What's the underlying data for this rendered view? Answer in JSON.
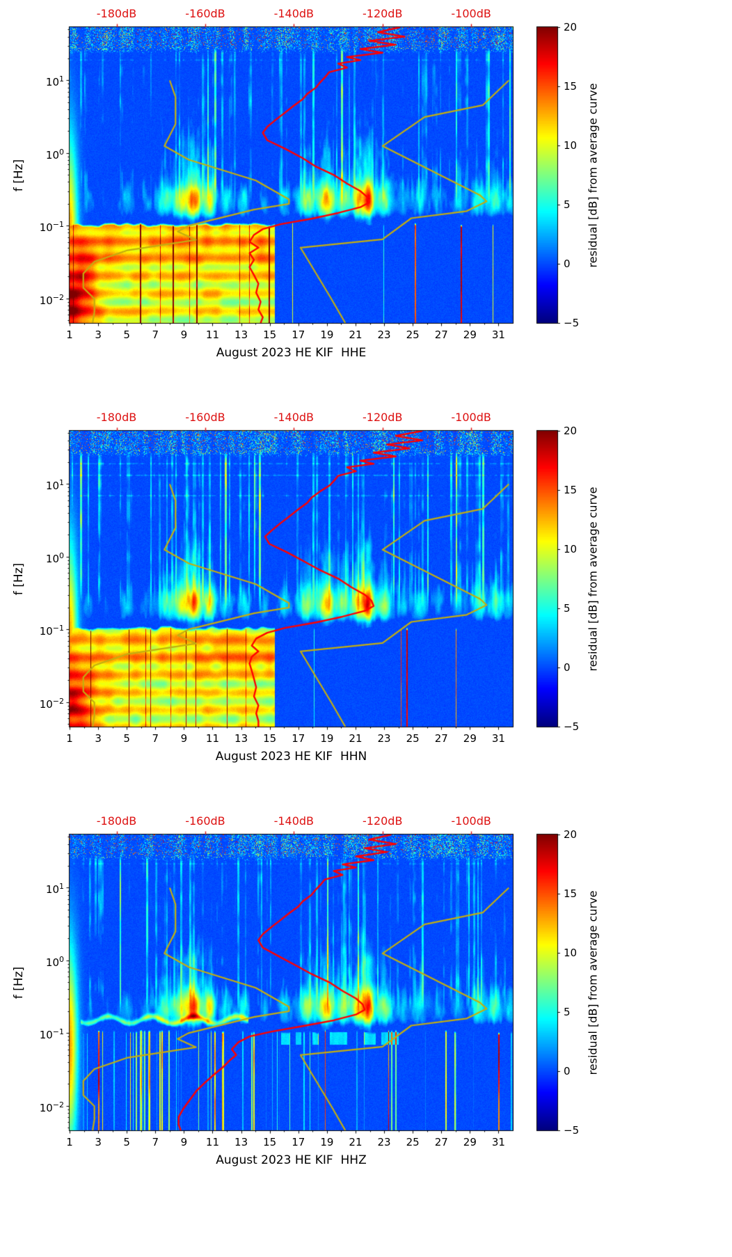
{
  "meta": {
    "month": "August 2023",
    "station": "HE KIF",
    "channels": [
      "HHE",
      "HHN",
      "HHZ"
    ]
  },
  "colors": {
    "background": "#ffffff",
    "axis": "#000000",
    "top_axis_red": "#dd1111",
    "mean_curve_red": "#ff0000",
    "noise_model_olive": "#c3ae10"
  },
  "chart_data": {
    "type": "heatmap",
    "shared": {
      "x_axis": {
        "ticks": [
          1,
          3,
          5,
          7,
          9,
          11,
          13,
          15,
          17,
          19,
          21,
          23,
          25,
          27,
          29,
          31
        ],
        "minor_ticks": [
          2,
          4,
          6,
          8,
          10,
          12,
          14,
          16,
          18,
          20,
          22,
          24,
          26,
          28,
          30
        ],
        "range": [
          1,
          32
        ]
      },
      "y_axis": {
        "label": "f [Hz]",
        "scale": "log",
        "range": [
          0.0046,
          54
        ],
        "ticks": [
          {
            "f": 10,
            "base": "10",
            "exp": "1"
          },
          {
            "f": 1,
            "base": "10",
            "exp": "0"
          },
          {
            "f": 0.1,
            "base": "10",
            "exp": "−1"
          },
          {
            "f": 0.01,
            "base": "10",
            "exp": "−2"
          }
        ]
      },
      "top_axis": {
        "color": "#dd1111",
        "range": [
          -190.6,
          -90.6
        ],
        "ticks": [
          {
            "db": -180,
            "label": "-180dB"
          },
          {
            "db": -160,
            "label": "-160dB"
          },
          {
            "db": -140,
            "label": "-140dB"
          },
          {
            "db": -120,
            "label": "-120dB"
          },
          {
            "db": -100,
            "label": "-100dB"
          }
        ]
      },
      "colorbar": {
        "label": "residual [dB] from average curve",
        "range": [
          -5,
          20
        ],
        "colormap": "jet",
        "ticks": [
          {
            "v": 20,
            "label": "20"
          },
          {
            "v": 15,
            "label": "15"
          },
          {
            "v": 10,
            "label": "10"
          },
          {
            "v": 5,
            "label": "5"
          },
          {
            "v": 0,
            "label": "0"
          },
          {
            "v": -5,
            "label": "−5"
          }
        ]
      },
      "noise_models": {
        "color": "#c3ae10",
        "nlnm": [
          [
            10,
            -168
          ],
          [
            5.9,
            -166.7
          ],
          [
            2.5,
            -166.7
          ],
          [
            1.25,
            -169.2
          ],
          [
            0.81,
            -163.7
          ],
          [
            0.42,
            -148.6
          ],
          [
            0.23,
            -141.1
          ],
          [
            0.2,
            -141.1
          ],
          [
            0.167,
            -149
          ],
          [
            0.1,
            -163.8
          ],
          [
            0.083,
            -166.2
          ],
          [
            0.064,
            -162.1
          ],
          [
            0.046,
            -177.5
          ],
          [
            0.032,
            -185
          ],
          [
            0.022,
            -187.5
          ],
          [
            0.014,
            -187.5
          ],
          [
            0.0099,
            -185
          ],
          [
            0.0065,
            -185
          ],
          [
            0.0046,
            -185.4
          ]
        ],
        "nhnm": [
          [
            10,
            -91.5
          ],
          [
            4.55,
            -97.4
          ],
          [
            3.13,
            -110.5
          ],
          [
            1.25,
            -120
          ],
          [
            0.263,
            -98
          ],
          [
            0.217,
            -96.5
          ],
          [
            0.159,
            -101
          ],
          [
            0.127,
            -113.5
          ],
          [
            0.065,
            -120
          ],
          [
            0.05,
            -138.5
          ],
          [
            0.01,
            -131.6
          ],
          [
            0.0046,
            -128.4
          ]
        ]
      },
      "mean_curve_color": "#ff0000",
      "ms_events": [
        [
          2.3,
          3.5,
          0.5
        ],
        [
          3.6,
          2.5,
          0.4
        ],
        [
          5,
          4.5,
          0.6
        ],
        [
          6.4,
          3,
          0.4
        ],
        [
          7.7,
          7,
          0.7
        ],
        [
          8.8,
          9,
          0.5
        ],
        [
          9.7,
          15,
          0.55
        ],
        [
          10.8,
          11,
          0.45
        ],
        [
          12,
          5,
          0.5
        ],
        [
          13.2,
          6,
          0.5
        ],
        [
          14.6,
          4,
          0.4
        ],
        [
          16,
          5,
          0.5
        ],
        [
          17.6,
          9,
          0.7
        ],
        [
          19,
          13,
          0.6
        ],
        [
          20.2,
          9,
          0.5
        ],
        [
          21.2,
          12,
          0.45
        ],
        [
          21.9,
          16,
          0.4
        ],
        [
          23,
          9,
          0.6
        ],
        [
          24.3,
          4,
          0.5
        ],
        [
          25.5,
          5,
          0.6
        ],
        [
          26.8,
          3.5,
          0.5
        ],
        [
          28.2,
          4,
          0.5
        ],
        [
          29.6,
          6.5,
          0.6
        ],
        [
          30.8,
          7,
          0.5
        ],
        [
          31.8,
          5,
          0.4
        ]
      ]
    },
    "panels": [
      {
        "channel": "HHE",
        "xlabel": "August 2023 HE KIF  HHE",
        "seed": 11,
        "mean_curve": [
          [
            54,
            -116
          ],
          [
            46,
            -121
          ],
          [
            40,
            -115
          ],
          [
            35,
            -123
          ],
          [
            31,
            -117
          ],
          [
            27,
            -125
          ],
          [
            24,
            -120
          ],
          [
            21,
            -128
          ],
          [
            19,
            -125
          ],
          [
            17,
            -130
          ],
          [
            15,
            -128
          ],
          [
            13,
            -132
          ],
          [
            11,
            -133
          ],
          [
            9.5,
            -134
          ],
          [
            8,
            -135
          ],
          [
            6.5,
            -137
          ],
          [
            5.5,
            -138
          ],
          [
            4.5,
            -140
          ],
          [
            3.6,
            -142
          ],
          [
            2.9,
            -144
          ],
          [
            2.3,
            -146
          ],
          [
            1.9,
            -147
          ],
          [
            1.5,
            -146
          ],
          [
            1.15,
            -142
          ],
          [
            0.85,
            -138
          ],
          [
            0.65,
            -135
          ],
          [
            0.5,
            -131
          ],
          [
            0.38,
            -128
          ],
          [
            0.3,
            -125
          ],
          [
            0.25,
            -123.5
          ],
          [
            0.21,
            -123
          ],
          [
            0.18,
            -125
          ],
          [
            0.15,
            -130
          ],
          [
            0.125,
            -136
          ],
          [
            0.105,
            -143
          ],
          [
            0.09,
            -147
          ],
          [
            0.075,
            -149
          ],
          [
            0.06,
            -150
          ],
          [
            0.05,
            -148
          ],
          [
            0.042,
            -150
          ],
          [
            0.034,
            -149
          ],
          [
            0.027,
            -150
          ],
          [
            0.021,
            -149
          ],
          [
            0.016,
            -148
          ],
          [
            0.012,
            -148.5
          ],
          [
            0.009,
            -147.5
          ],
          [
            0.007,
            -148
          ],
          [
            0.0055,
            -147
          ],
          [
            0.0046,
            -147.5
          ]
        ],
        "features": {
          "lf_mode": "block",
          "lf_cut_day": 15.35,
          "lf_level": 10.3,
          "lf_corner": 9,
          "lf_band_boost": 2.6,
          "lf_quiet": -4.6,
          "stripe_amp": 6,
          "h_lines": [
            [
              1.28,
              1.5
            ],
            [
              1.44,
              1.2
            ]
          ],
          "ms_scale": 1.0
        }
      },
      {
        "channel": "HHN",
        "xlabel": "August 2023 HE KIF  HHN",
        "seed": 23,
        "mean_curve": [
          [
            54,
            -111
          ],
          [
            46,
            -117
          ],
          [
            40,
            -111
          ],
          [
            35,
            -119
          ],
          [
            31,
            -114
          ],
          [
            27,
            -122
          ],
          [
            24,
            -117
          ],
          [
            21,
            -125
          ],
          [
            19,
            -122
          ],
          [
            17,
            -128
          ],
          [
            15,
            -126
          ],
          [
            13,
            -130
          ],
          [
            11,
            -131
          ],
          [
            9.5,
            -132
          ],
          [
            8,
            -134
          ],
          [
            6.5,
            -136
          ],
          [
            5.5,
            -137
          ],
          [
            4.5,
            -139
          ],
          [
            3.6,
            -141
          ],
          [
            2.9,
            -143
          ],
          [
            2.3,
            -145
          ],
          [
            1.9,
            -146.5
          ],
          [
            1.5,
            -145.5
          ],
          [
            1.15,
            -141.5
          ],
          [
            0.85,
            -137.5
          ],
          [
            0.65,
            -134
          ],
          [
            0.5,
            -130
          ],
          [
            0.38,
            -127
          ],
          [
            0.3,
            -124
          ],
          [
            0.25,
            -122.5
          ],
          [
            0.21,
            -122
          ],
          [
            0.18,
            -124
          ],
          [
            0.15,
            -129
          ],
          [
            0.125,
            -135
          ],
          [
            0.105,
            -142
          ],
          [
            0.09,
            -146
          ],
          [
            0.075,
            -148.5
          ],
          [
            0.06,
            -149.5
          ],
          [
            0.05,
            -148
          ],
          [
            0.042,
            -149.5
          ],
          [
            0.034,
            -150
          ],
          [
            0.027,
            -149.5
          ],
          [
            0.021,
            -149
          ],
          [
            0.016,
            -148.5
          ],
          [
            0.012,
            -149
          ],
          [
            0.009,
            -148
          ],
          [
            0.007,
            -148.5
          ],
          [
            0.0055,
            -148
          ],
          [
            0.0046,
            -148
          ]
        ],
        "features": {
          "lf_mode": "block",
          "lf_cut_day": 15.35,
          "lf_level": 10.0,
          "lf_corner": 8,
          "lf_band_boost": 2.4,
          "lf_quiet": -4.6,
          "stripe_amp": 6.5,
          "h_lines": [
            [
              0.84,
              2.2
            ],
            [
              1.12,
              2.6
            ],
            [
              1.28,
              2.4
            ],
            [
              1.42,
              2.0
            ]
          ],
          "ms_scale": 1.0
        }
      },
      {
        "channel": "HHZ",
        "xlabel": "August 2023 HE KIF  HHZ",
        "seed": 37,
        "mean_curve": [
          [
            54,
            -118
          ],
          [
            46,
            -123
          ],
          [
            40,
            -117
          ],
          [
            35,
            -124
          ],
          [
            31,
            -119
          ],
          [
            27,
            -126
          ],
          [
            24,
            -122
          ],
          [
            21,
            -129
          ],
          [
            19,
            -126
          ],
          [
            17,
            -131
          ],
          [
            15,
            -129
          ],
          [
            13,
            -133
          ],
          [
            11,
            -134
          ],
          [
            9.5,
            -135
          ],
          [
            8,
            -136
          ],
          [
            6.5,
            -138
          ],
          [
            5.5,
            -139
          ],
          [
            4.5,
            -141
          ],
          [
            3.6,
            -143
          ],
          [
            2.9,
            -145
          ],
          [
            2.3,
            -147
          ],
          [
            1.9,
            -148
          ],
          [
            1.5,
            -147
          ],
          [
            1.15,
            -143.5
          ],
          [
            0.85,
            -139.5
          ],
          [
            0.65,
            -136
          ],
          [
            0.5,
            -132
          ],
          [
            0.38,
            -129
          ],
          [
            0.3,
            -126
          ],
          [
            0.25,
            -124.5
          ],
          [
            0.21,
            -124
          ],
          [
            0.18,
            -126
          ],
          [
            0.15,
            -131
          ],
          [
            0.125,
            -138
          ],
          [
            0.105,
            -145
          ],
          [
            0.09,
            -150
          ],
          [
            0.075,
            -152.5
          ],
          [
            0.06,
            -154
          ],
          [
            0.05,
            -153
          ],
          [
            0.042,
            -154.5
          ],
          [
            0.034,
            -156
          ],
          [
            0.027,
            -158
          ],
          [
            0.021,
            -160
          ],
          [
            0.016,
            -162
          ],
          [
            0.012,
            -163.5
          ],
          [
            0.009,
            -165
          ],
          [
            0.007,
            -166
          ],
          [
            0.0055,
            -166
          ],
          [
            0.0046,
            -165.5
          ]
        ],
        "features": {
          "lf_mode": "stripes",
          "lf_quiet": -3.9,
          "stripe_amp": 6,
          "h_lines": [
            [
              1.33,
              1.6
            ]
          ],
          "ms_scale": 1.0,
          "orange_line": {
            "d0": 1.8,
            "d1": 13.5,
            "lf": -0.82,
            "amp": 8
          },
          "dash_band": {
            "d0": 15.8,
            "d1": 24,
            "lf0": -1.16,
            "lf1": -0.99,
            "amp": 7.5
          }
        }
      }
    ]
  }
}
